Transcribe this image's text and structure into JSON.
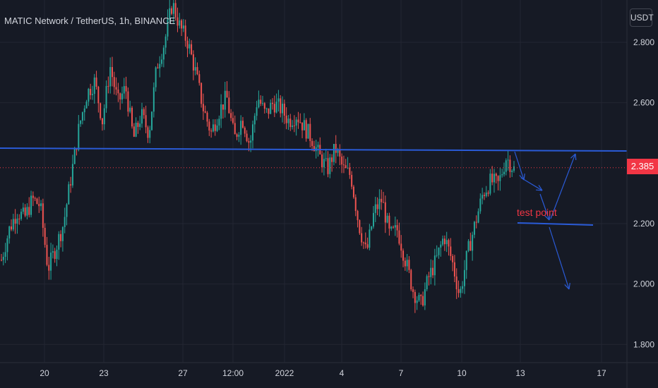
{
  "header": {
    "symbol_title": "MATIC Network / TetherUS, 1h, BINANCE",
    "currency": "USDT",
    "current_price_label": "2.385"
  },
  "colors": {
    "background": "#161a25",
    "grid": "#232632",
    "up_candle": "#26a69a",
    "down_candle": "#ef5350",
    "drawing": "#2a5bd7",
    "price_line": "#f23645",
    "text": "#d1d4dc"
  },
  "chart_data": {
    "type": "candlestick",
    "y_axis_ticks": [
      "2.800",
      "2.600",
      "2.200",
      "2.000",
      "1.800"
    ],
    "y_range": [
      1.74,
      2.94
    ],
    "x_axis_ticks": [
      "20",
      "23",
      "27",
      "12:00",
      "2022",
      "4",
      "7",
      "10",
      "13",
      "17"
    ],
    "current_price": 2.385,
    "price_path": [
      2.08,
      2.18,
      2.24,
      2.22,
      2.28,
      2.26,
      2.05,
      2.12,
      2.2,
      2.36,
      2.52,
      2.63,
      2.67,
      2.54,
      2.72,
      2.6,
      2.65,
      2.48,
      2.56,
      2.5,
      2.72,
      2.8,
      2.93,
      2.85,
      2.8,
      2.7,
      2.58,
      2.5,
      2.57,
      2.62,
      2.48,
      2.55,
      2.46,
      2.62,
      2.56,
      2.6,
      2.58,
      2.54,
      2.56,
      2.52,
      2.48,
      2.42,
      2.38,
      2.45,
      2.38,
      2.36,
      2.2,
      2.1,
      2.24,
      2.28,
      2.16,
      2.18,
      2.08,
      1.98,
      1.93,
      2.02,
      2.08,
      2.16,
      2.08,
      1.96,
      2.1,
      2.2,
      2.3,
      2.34,
      2.33,
      2.42,
      2.38
    ],
    "annotation": "test point",
    "drawings": {
      "resistance_line_price": 2.445,
      "support_line_price": 2.2
    }
  }
}
